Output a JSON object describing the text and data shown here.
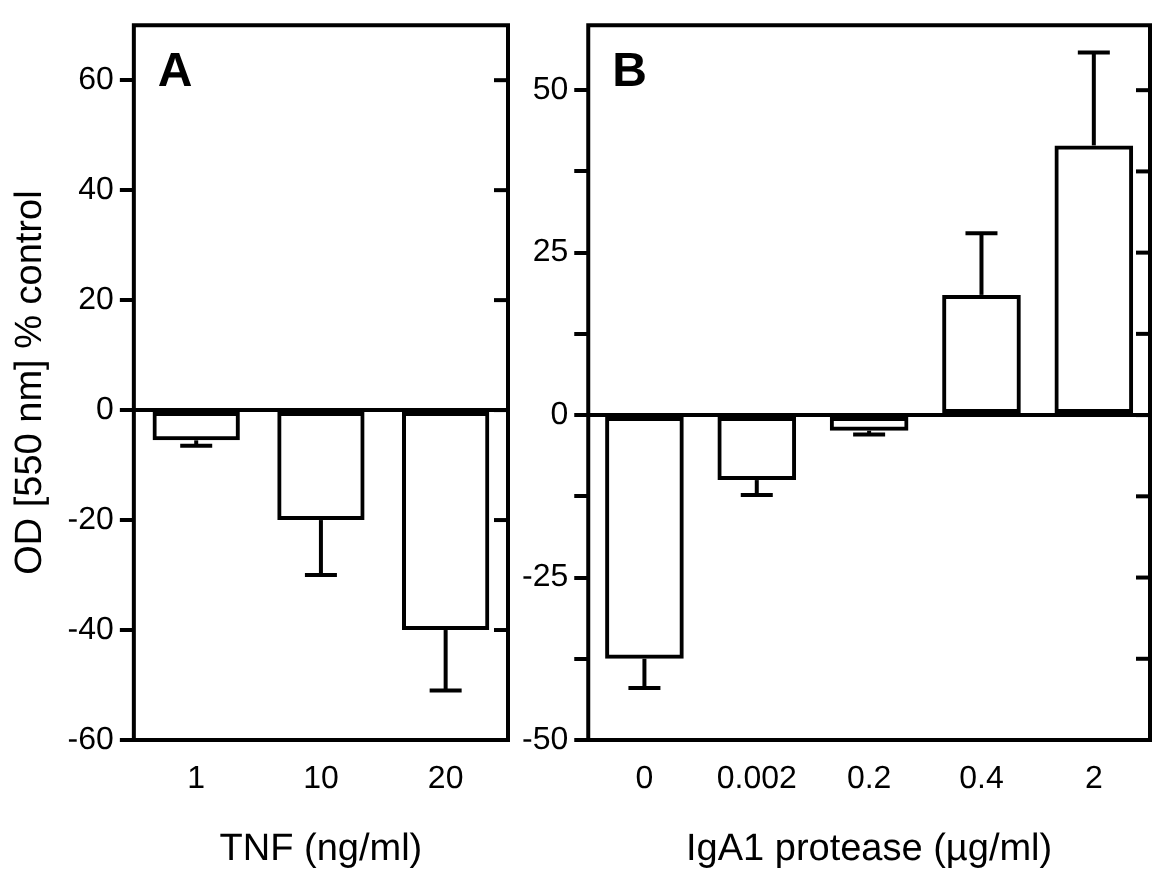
{
  "chart_data": [
    {
      "type": "bar",
      "annotations": [
        "A"
      ],
      "xlabel": "TNF (ng/ml)",
      "ylabel": "OD [550 nm] % control",
      "categories": [
        "1",
        "10",
        "20"
      ],
      "values": [
        -5.5,
        -20,
        -40
      ],
      "color": "#000000",
      "errors": [
        [
          -6.5,
          -5.5
        ],
        [
          -30,
          -20
        ],
        [
          -51,
          -40
        ]
      ],
      "ylim": [
        -60,
        70
      ],
      "yticks": [
        -60,
        -40,
        -20,
        0,
        20,
        40,
        60
      ]
    },
    {
      "type": "bar",
      "annotations": [
        "B"
      ],
      "xlabel": "IgA1 protease (µg/ml)",
      "categories": [
        "0",
        "0.002",
        "0.2",
        "0.4",
        "2"
      ],
      "values": [
        -37.5,
        -10,
        -2.4,
        18.5,
        41.5
      ],
      "color": "#000000",
      "errors": [
        [
          -42,
          -37.5
        ],
        [
          -12.3,
          -10
        ],
        [
          -3,
          -2.4
        ],
        [
          18.5,
          28
        ],
        [
          41.5,
          55.8
        ]
      ],
      "ylim": [
        -50,
        60
      ],
      "yticks": [
        -50,
        {
          "value": -37.5,
          "label": null
        },
        -25,
        {
          "value": -12.5,
          "label": null
        },
        0,
        {
          "value": 12.5,
          "label": null
        },
        25,
        {
          "value": 37.5,
          "label": null
        },
        50
      ]
    }
  ]
}
